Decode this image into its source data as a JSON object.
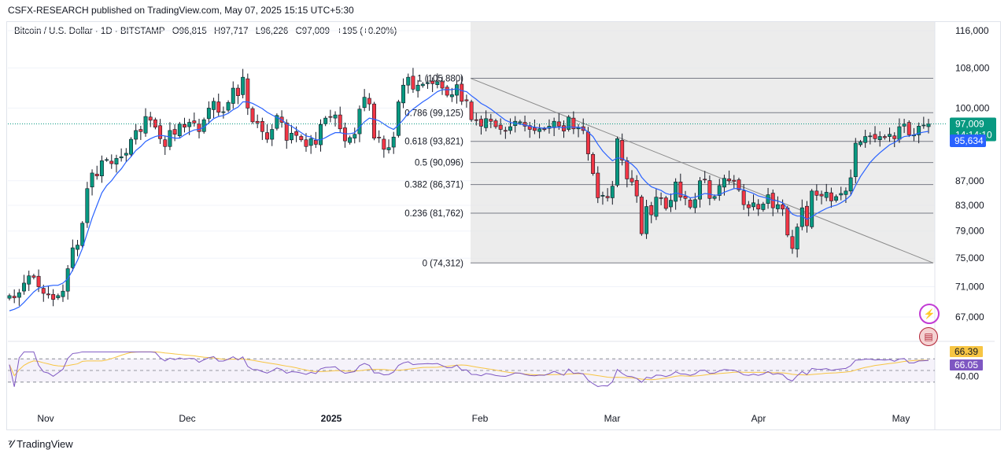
{
  "header": {
    "published": "CSFX-RESEARCH published on TradingView.com, May 07, 2025 15:15 UTC+5:30"
  },
  "legend": {
    "symbol": "Bitcoin / U.S. Dollar · 1D · BITSTAMP",
    "open": "O96,815",
    "high": "H97,717",
    "low": "L96,226",
    "close": "C97,009",
    "change": "+195 (+0.20%)"
  },
  "footer": {
    "brand": "TradingView"
  },
  "colors": {
    "up": "#089981",
    "down": "#f23645",
    "ma": "#2962ff",
    "rsi": "#7e57c2",
    "rsi_ma": "#f7c543",
    "fib_zone": "#e6e6e6"
  },
  "chart_data": {
    "type": "candlestick",
    "price_axis": {
      "ticks": [
        "116,000",
        "108,000",
        "100,000",
        "87,000",
        "83,000",
        "79,000",
        "75,000",
        "71,000",
        "67,000"
      ],
      "values": [
        116000,
        108000,
        100000,
        87000,
        83000,
        79000,
        75000,
        71000,
        67000
      ]
    },
    "time_axis": [
      "Nov",
      "Dec",
      "2025",
      "Feb",
      "Mar",
      "Apr",
      "May"
    ],
    "badges": {
      "last_price": "97,009",
      "countdown": "14:14:10",
      "ma_value": "95,634"
    },
    "fibonacci": [
      {
        "level": "1 (105,880)",
        "price": 105880
      },
      {
        "level": "0.786 (99,125)",
        "price": 99125
      },
      {
        "level": "0.618 (93,821)",
        "price": 93821
      },
      {
        "level": "0.5 (90,096)",
        "price": 90096
      },
      {
        "level": "0.382 (86,371)",
        "price": 86371
      },
      {
        "level": "0.236 (81,762)",
        "price": 81762
      },
      {
        "level": "0 (74,312)",
        "price": 74312
      }
    ],
    "rsi": {
      "axis_tick": "40.00",
      "rsi_value": "66.39",
      "rsi_ma_value": "66.05",
      "upper": 70,
      "lower": 30,
      "mid": 50
    },
    "series_close": [
      69800,
      69500,
      70200,
      71500,
      72500,
      72300,
      71000,
      70100,
      69900,
      69300,
      69800,
      70400,
      73500,
      76500,
      76900,
      80200,
      85700,
      88300,
      87800,
      90400,
      90600,
      89900,
      90800,
      91100,
      91700,
      94200,
      95800,
      95600,
      98400,
      97700,
      96400,
      94300,
      92900,
      95800,
      95100,
      97000,
      96400,
      97300,
      97200,
      95600,
      97800,
      100000,
      101300,
      99200,
      99300,
      101100,
      103900,
      102400,
      106100,
      100000,
      97400,
      97200,
      95600,
      94200,
      96000,
      98600,
      97300,
      94000,
      95300,
      94900,
      94100,
      92900,
      94300,
      93300,
      96900,
      98100,
      98300,
      98700,
      96100,
      93900,
      94500,
      95100,
      99800,
      102100,
      100800,
      94400,
      94500,
      92400,
      92700,
      94600,
      101200,
      104500,
      106100,
      103700,
      104500,
      104700,
      105000,
      104800,
      105200,
      103900,
      102500,
      102600,
      104600,
      101300,
      101400,
      97800,
      97700,
      96600,
      98000,
      97500,
      96500,
      96000,
      95800,
      96500,
      97500,
      97400,
      96600,
      96000,
      95800,
      96100,
      96000,
      96600,
      97500,
      96600,
      95700,
      98300,
      96100,
      96300,
      95800,
      91600,
      88200,
      84200,
      84600,
      84200,
      86100,
      94300,
      90500,
      87300,
      86800,
      84500,
      78600,
      82800,
      81500,
      84300,
      84100,
      82500,
      83800,
      86800,
      84300,
      84100,
      82700,
      83900,
      87000,
      87200,
      84100,
      84400,
      86200,
      87400,
      87000,
      86900,
      85500,
      83100,
      82600,
      83400,
      82400,
      83200,
      84700,
      82600,
      83100,
      82400,
      78400,
      76400,
      79600,
      82600,
      79800,
      85300,
      84600,
      84500,
      85100,
      83700,
      84400,
      84900,
      85300,
      87500,
      93500,
      93700,
      94700,
      94800,
      94300,
      94700,
      94500,
      95100,
      94300,
      96500,
      97000,
      95000,
      95000,
      96600,
      96800,
      97009
    ],
    "series_ma": [
      67800,
      68000,
      68300,
      68900,
      69600,
      70300,
      70800,
      71000,
      71100,
      71200,
      71200,
      71500,
      72100,
      73300,
      74700,
      76400,
      78700,
      81000,
      83000,
      85000,
      86200,
      87000,
      88100,
      89000,
      90200,
      91100,
      92200,
      92900,
      93800,
      94300,
      94700,
      94900,
      94800,
      94600,
      94400,
      94400,
      95000,
      95500,
      95900,
      96000,
      96400,
      97200,
      98000,
      98400,
      98600,
      99000,
      99700,
      100200,
      101200,
      101200,
      100900,
      100400,
      99900,
      99200,
      98700,
      98200,
      97800,
      97000,
      96600,
      96000,
      95400,
      94800,
      94600,
      94100,
      94100,
      94500,
      95000,
      95400,
      95400,
      95200,
      95200,
      95400,
      96400,
      97400,
      98100,
      97900,
      97600,
      97000,
      96400,
      96000,
      96800,
      97800,
      99000,
      99800,
      100500,
      101200,
      101800,
      102500,
      103200,
      103600,
      103600,
      103600,
      103800,
      103400,
      103200,
      102400,
      101700,
      100900,
      100400,
      99800,
      99100,
      98400,
      97700,
      97300,
      97100,
      97000,
      96800,
      96600,
      96400,
      96300,
      96200,
      96300,
      96400,
      96400,
      96300,
      96500,
      96400,
      96400,
      96200,
      95500,
      94700,
      93300,
      92100,
      91200,
      90400,
      90900,
      90800,
      90300,
      89800,
      89000,
      87600,
      86700,
      86000,
      85700,
      85400,
      84900,
      84700,
      85000,
      84800,
      84600,
      84200,
      84300,
      84600,
      84900,
      84800,
      84600,
      84700,
      85100,
      85400,
      85700,
      85700,
      85500,
      85200,
      84900,
      84500,
      84300,
      84100,
      83800,
      83700,
      83400,
      82500,
      81600,
      81300,
      81300,
      80800,
      81200,
      81700,
      82100,
      82500,
      82800,
      83000,
      83400,
      83900,
      84600,
      86200,
      87700,
      88900,
      90100,
      91000,
      91800,
      92500,
      93200,
      93600,
      94200,
      94700,
      94800,
      95000,
      95300,
      95500,
      95634
    ]
  }
}
